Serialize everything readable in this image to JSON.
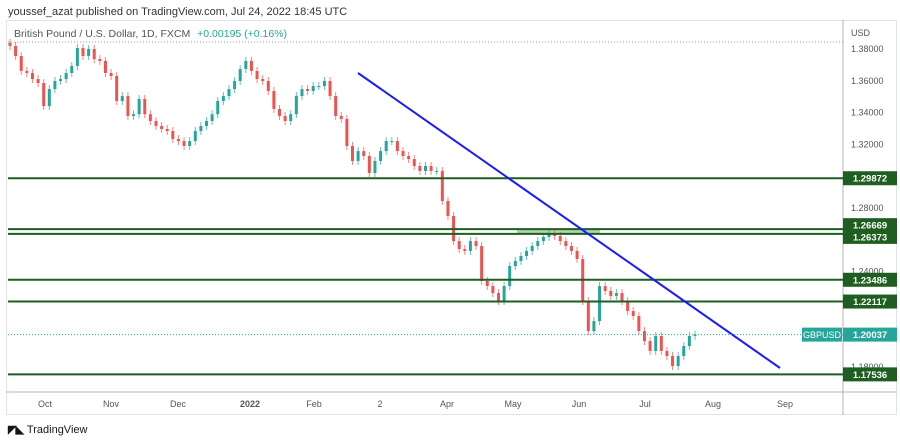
{
  "header": {
    "published": "youssef_azat published on TradingView.com, Jul 24, 2022 18:45 UTC"
  },
  "legend": {
    "symbol": "British Pound / U.S. Dollar, 1D, FXCM",
    "change": "+0.00195 (+0.16%)"
  },
  "footer": {
    "brand": "TradingView",
    "logo_icon": "tradingview-logo-icon"
  },
  "colors": {
    "up": "#26a69a",
    "down": "#ef5350",
    "level": "#1e5e20",
    "trendline": "#1a1aff",
    "zone": "#9cc79a",
    "price_label": "#26a69a"
  },
  "chart_data": {
    "type": "candlestick",
    "title": "British Pound / U.S. Dollar, 1D, FXCM",
    "ylabel": "USD",
    "ylim": [
      1.165,
      1.3875
    ],
    "y_ticks": [
      "1.38000",
      "1.36000",
      "1.34000",
      "1.32000",
      "1.28000",
      "1.24000",
      "1.18000"
    ],
    "x_ticks": [
      "Oct",
      "Nov",
      "Dec",
      "2022",
      "Feb",
      "2",
      "Apr",
      "May",
      "Jun",
      "Jul",
      "Aug",
      "Sep"
    ],
    "grid": false,
    "closes": [
      1.3819,
      1.3756,
      1.3662,
      1.3649,
      1.3611,
      1.3586,
      1.3441,
      1.3548,
      1.3599,
      1.3611,
      1.3649,
      1.3693,
      1.3806,
      1.3756,
      1.38,
      1.3737,
      1.3725,
      1.3649,
      1.363,
      1.3473,
      1.3504,
      1.3379,
      1.339,
      1.3486,
      1.339,
      1.3347,
      1.3316,
      1.3297,
      1.3284,
      1.3234,
      1.3221,
      1.319,
      1.3221,
      1.3284,
      1.3316,
      1.3347,
      1.339,
      1.3473,
      1.3504,
      1.3548,
      1.3599,
      1.3674,
      1.3725,
      1.3662,
      1.3611,
      1.3599,
      1.3536,
      1.3423,
      1.3379,
      1.3347,
      1.339,
      1.3504,
      1.3548,
      1.3536,
      1.3567,
      1.3567,
      1.3599,
      1.3504,
      1.3379,
      1.336,
      1.319,
      1.3096,
      1.3158,
      1.3127,
      1.302,
      1.3096,
      1.3158,
      1.3221,
      1.3221,
      1.3158,
      1.3127,
      1.3108,
      1.3064,
      1.3033,
      1.3064,
      1.3033,
      1.3033,
      1.2844,
      1.275,
      1.2592,
      1.2542,
      1.253,
      1.2592,
      1.2561,
      1.2341,
      1.2309,
      1.2265,
      1.2215,
      1.2309,
      1.2435,
      1.2467,
      1.2498,
      1.253,
      1.2561,
      1.2592,
      1.2618,
      1.2643,
      1.2624,
      1.2592,
      1.2561,
      1.253,
      1.2479,
      1.2215,
      1.2026,
      1.2089,
      1.2309,
      1.2278,
      1.2247,
      1.2265,
      1.2215,
      1.2152,
      1.2121,
      1.2026,
      1.1963,
      1.1901,
      1.1995,
      1.1901,
      1.1869,
      1.1806,
      1.1869,
      1.1932,
      1.1995,
      1.2004
    ],
    "levels": [
      "1.29872",
      "1.26669",
      "1.26373",
      "1.23486",
      "1.22117",
      "1.17536"
    ],
    "resistance_zone": [
      1.26373,
      1.26669
    ],
    "trendline": {
      "from": {
        "date": "Mar 2022",
        "price": 1.3645
      },
      "to": {
        "date": "Aug 2022",
        "price": 1.179
      }
    },
    "last_price": {
      "symbol": "GBPUSD",
      "value": "1.20037"
    }
  }
}
